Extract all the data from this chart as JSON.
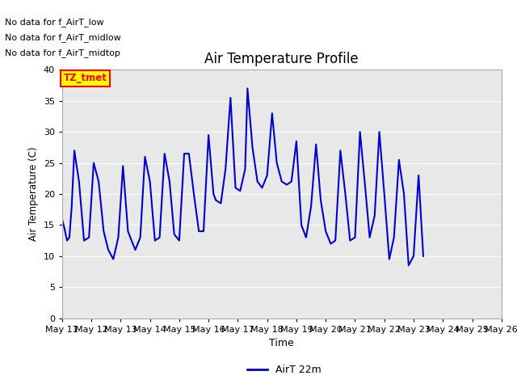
{
  "title": "Air Temperature Profile",
  "xlabel": "Time",
  "ylabel": "Air Temperature (C)",
  "legend_label": "AirT 22m",
  "plot_bg_color": "#e8e8e8",
  "fig_bg_color": "#ffffff",
  "line_color": "#0000cc",
  "ylim": [
    0,
    40
  ],
  "yticks": [
    0,
    5,
    10,
    15,
    20,
    25,
    30,
    35,
    40
  ],
  "annotations": [
    "No data for f_AirT_low",
    "No data for f_AirT_midlow",
    "No data for f_AirT_midtop"
  ],
  "tz_label": "TZ_tmet",
  "x_tick_positions": [
    11,
    12,
    13,
    14,
    15,
    16,
    17,
    18,
    19,
    20,
    21,
    22,
    23,
    24,
    25,
    26
  ],
  "x_labels": [
    "May 11",
    "May 12",
    "May 13",
    "May 14",
    "May 15",
    "May 16",
    "May 17",
    "May 18",
    "May 19",
    "May 20",
    "May 21",
    "May 22",
    "May 23",
    "May 24",
    "May 25",
    "May 26"
  ],
  "temp_data": [
    [
      11.0,
      16.0
    ],
    [
      11.08,
      14.5
    ],
    [
      11.17,
      12.5
    ],
    [
      11.25,
      13.0
    ],
    [
      11.33,
      18.0
    ],
    [
      11.42,
      27.0
    ],
    [
      11.58,
      22.0
    ],
    [
      11.75,
      12.5
    ],
    [
      11.92,
      13.0
    ],
    [
      12.08,
      25.0
    ],
    [
      12.25,
      22.0
    ],
    [
      12.42,
      14.0
    ],
    [
      12.58,
      11.0
    ],
    [
      12.75,
      9.5
    ],
    [
      12.92,
      13.0
    ],
    [
      13.08,
      24.5
    ],
    [
      13.25,
      14.0
    ],
    [
      13.33,
      13.0
    ],
    [
      13.5,
      11.0
    ],
    [
      13.67,
      13.0
    ],
    [
      13.83,
      26.0
    ],
    [
      14.0,
      22.0
    ],
    [
      14.17,
      12.5
    ],
    [
      14.33,
      13.0
    ],
    [
      14.5,
      26.5
    ],
    [
      14.67,
      22.0
    ],
    [
      14.83,
      13.5
    ],
    [
      15.0,
      12.5
    ],
    [
      15.17,
      26.5
    ],
    [
      15.33,
      26.5
    ],
    [
      15.5,
      20.0
    ],
    [
      15.67,
      14.0
    ],
    [
      15.83,
      14.0
    ],
    [
      16.0,
      29.5
    ],
    [
      16.17,
      20.0
    ],
    [
      16.25,
      19.0
    ],
    [
      16.42,
      18.5
    ],
    [
      16.58,
      24.0
    ],
    [
      16.75,
      35.5
    ],
    [
      16.92,
      21.0
    ],
    [
      17.08,
      20.5
    ],
    [
      17.25,
      24.0
    ],
    [
      17.33,
      37.0
    ],
    [
      17.5,
      27.5
    ],
    [
      17.67,
      22.0
    ],
    [
      17.83,
      21.0
    ],
    [
      18.0,
      23.0
    ],
    [
      18.17,
      33.0
    ],
    [
      18.33,
      25.0
    ],
    [
      18.5,
      22.0
    ],
    [
      18.67,
      21.5
    ],
    [
      18.83,
      22.0
    ],
    [
      19.0,
      28.5
    ],
    [
      19.17,
      15.0
    ],
    [
      19.33,
      13.0
    ],
    [
      19.5,
      18.0
    ],
    [
      19.67,
      28.0
    ],
    [
      19.83,
      19.0
    ],
    [
      20.0,
      14.0
    ],
    [
      20.17,
      12.0
    ],
    [
      20.33,
      12.5
    ],
    [
      20.5,
      27.0
    ],
    [
      20.67,
      20.0
    ],
    [
      20.83,
      12.5
    ],
    [
      21.0,
      13.0
    ],
    [
      21.17,
      30.0
    ],
    [
      21.33,
      22.0
    ],
    [
      21.5,
      13.0
    ],
    [
      21.67,
      16.5
    ],
    [
      21.83,
      30.0
    ],
    [
      22.0,
      20.0
    ],
    [
      22.17,
      9.5
    ],
    [
      22.33,
      13.0
    ],
    [
      22.5,
      25.5
    ],
    [
      22.67,
      20.0
    ],
    [
      22.83,
      8.5
    ],
    [
      23.0,
      10.0
    ],
    [
      23.17,
      23.0
    ],
    [
      23.33,
      10.0
    ]
  ]
}
